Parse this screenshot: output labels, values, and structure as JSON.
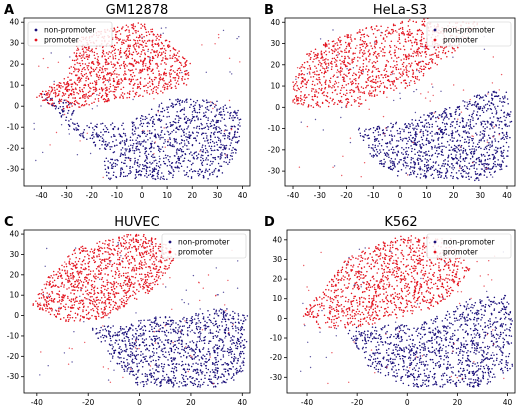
{
  "figure": {
    "panels": [
      {
        "letter": "A",
        "title": "GM12878",
        "legend_position": "upper-left"
      },
      {
        "letter": "B",
        "title": "HeLa-S3",
        "legend_position": "upper-right"
      },
      {
        "letter": "C",
        "title": "HUVEC",
        "legend_position": "upper-right"
      },
      {
        "letter": "D",
        "title": "K562",
        "legend_position": "upper-right"
      }
    ]
  },
  "colors": {
    "non_promoter": "#1a0f7a",
    "promoter": "#e3141f",
    "axis": "#000000"
  },
  "chart_data": [
    {
      "type": "scatter",
      "title": "GM12878",
      "xlim": [
        -47,
        43
      ],
      "ylim": [
        -38,
        42
      ],
      "xticks": [
        -40,
        -30,
        -20,
        -10,
        0,
        10,
        20,
        30,
        40
      ],
      "yticks": [
        -30,
        -20,
        -10,
        0,
        10,
        20,
        30,
        40
      ],
      "legend": [
        "non-promoter",
        "promoter"
      ],
      "legend_position": "upper-left",
      "series": [
        {
          "name": "non-promoter",
          "color": "#1a0f7a",
          "regions": [
            [
              -42,
              7,
              -25,
              1
            ],
            [
              -30,
              -10,
              -15,
              -22
            ],
            [
              -15,
              -35,
              30,
              -35
            ],
            [
              38,
              -22,
              40,
              -3
            ],
            [
              30,
              3,
              10,
              4
            ],
            [
              -5,
              -8,
              -30,
              -8
            ]
          ]
        },
        {
          "name": "promoter",
          "color": "#e3141f",
          "regions": [
            [
              -43,
              5,
              -38,
              9
            ],
            [
              -30,
              14,
              -25,
              33
            ],
            [
              -10,
              38,
              0,
              40
            ],
            [
              10,
              32,
              20,
              20
            ],
            [
              18,
              10,
              5,
              5
            ],
            [
              -15,
              2,
              -30,
              -2
            ],
            [
              -38,
              1,
              -43,
              5
            ]
          ]
        }
      ]
    },
    {
      "type": "scatter",
      "title": "HeLa-S3",
      "xlim": [
        -43,
        43
      ],
      "ylim": [
        -37,
        42
      ],
      "xticks": [
        -40,
        -30,
        -20,
        -10,
        0,
        10,
        20,
        30,
        40
      ],
      "yticks": [
        -30,
        -20,
        -10,
        0,
        10,
        20,
        30,
        40
      ],
      "legend": [
        "non-promoter",
        "promoter"
      ],
      "legend_position": "upper-right",
      "series": [
        {
          "name": "non-promoter",
          "color": "#1a0f7a",
          "regions": [
            [
              -17,
              -10,
              -10,
              -25
            ],
            [
              0,
              -33,
              30,
              -35
            ],
            [
              40,
              -28,
              42,
              -5
            ],
            [
              40,
              8,
              30,
              7
            ],
            [
              20,
              1,
              5,
              -5
            ],
            [
              -5,
              -8,
              -17,
              -10
            ]
          ]
        },
        {
          "name": "promoter",
          "color": "#e3141f",
          "regions": [
            [
              -40,
              12,
              -35,
              25
            ],
            [
              -25,
              33,
              -5,
              40
            ],
            [
              10,
              42,
              20,
              40
            ],
            [
              30,
              40,
              22,
              28
            ],
            [
              12,
              18,
              5,
              10
            ],
            [
              -10,
              5,
              -15,
              0
            ],
            [
              -40,
              0,
              -40,
              12
            ]
          ]
        }
      ]
    },
    {
      "type": "scatter",
      "title": "HUVEC",
      "xlim": [
        -45,
        43
      ],
      "ylim": [
        -38,
        42
      ],
      "xticks": [
        -40,
        -20,
        0,
        20,
        40
      ],
      "yticks": [
        -30,
        -20,
        -10,
        0,
        10,
        20,
        30,
        40
      ],
      "legend": [
        "non-promoter",
        "promoter"
      ],
      "legend_position": "upper-right",
      "series": [
        {
          "name": "non-promoter",
          "color": "#1a0f7a",
          "regions": [
            [
              -20,
              -5,
              -10,
              -22
            ],
            [
              0,
              -35,
              30,
              -35
            ],
            [
              40,
              -30,
              42,
              -10
            ],
            [
              42,
              0,
              30,
              5
            ],
            [
              15,
              -2,
              10,
              0
            ],
            [
              0,
              -2,
              -5,
              -5
            ]
          ]
        },
        {
          "name": "promoter",
          "color": "#e3141f",
          "regions": [
            [
              -42,
              5,
              -35,
              20
            ],
            [
              -25,
              33,
              -5,
              40
            ],
            [
              5,
              40,
              15,
              30
            ],
            [
              10,
              20,
              5,
              12
            ],
            [
              -5,
              5,
              -15,
              -2
            ],
            [
              -30,
              -3,
              -42,
              5
            ]
          ]
        }
      ]
    },
    {
      "type": "scatter",
      "title": "K562",
      "xlim": [
        -48,
        43
      ],
      "ylim": [
        -38,
        45
      ],
      "xticks": [
        -40,
        -20,
        0,
        20,
        40
      ],
      "yticks": [
        -30,
        -20,
        -10,
        0,
        10,
        20,
        30,
        40
      ],
      "legend": [
        "non-promoter",
        "promoter"
      ],
      "legend_position": "upper-right",
      "series": [
        {
          "name": "non-promoter",
          "color": "#1a0f7a",
          "regions": [
            [
              -25,
              -5,
              -15,
              -25
            ],
            [
              0,
              -35,
              30,
              -35
            ],
            [
              42,
              -25,
              42,
              0
            ],
            [
              40,
              12,
              25,
              10
            ],
            [
              15,
              3,
              5,
              -3
            ],
            [
              -5,
              -3,
              -25,
              -5
            ]
          ]
        },
        {
          "name": "promoter",
          "color": "#e3141f",
          "regions": [
            [
              -43,
              2,
              -33,
              15
            ],
            [
              -25,
              30,
              -5,
              42
            ],
            [
              10,
              42,
              20,
              35
            ],
            [
              25,
              25,
              18,
              12
            ],
            [
              10,
              5,
              -5,
              0
            ],
            [
              -20,
              -5,
              -35,
              -5
            ],
            [
              -43,
              2,
              -43,
              2
            ]
          ]
        }
      ]
    }
  ]
}
